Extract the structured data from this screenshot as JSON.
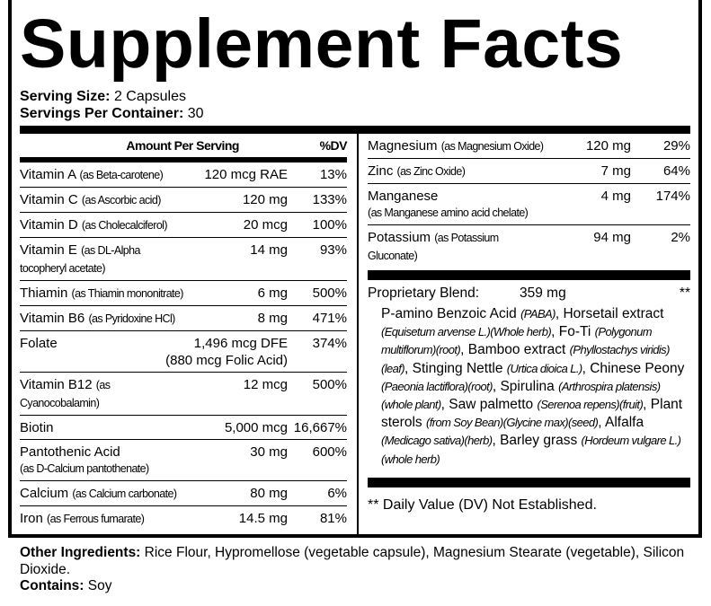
{
  "title": "Supplement Facts",
  "serving": {
    "size_label": "Serving Size:",
    "size_value": "2 Capsules",
    "per_container_label": "Servings Per Container:",
    "per_container_value": "30"
  },
  "header": {
    "amount": "Amount Per Serving",
    "dv": "%DV"
  },
  "left_rows": [
    {
      "name": "Vitamin A",
      "source": "(as Beta-carotene)",
      "amount": "120 mcg RAE",
      "dv": "13%"
    },
    {
      "name": "Vitamin C",
      "source": "(as Ascorbic acid)",
      "amount": "120 mg",
      "dv": "133%"
    },
    {
      "name": "Vitamin D",
      "source": "(as Cholecalciferol)",
      "amount": "20 mcg",
      "dv": "100%"
    },
    {
      "name": "Vitamin E",
      "source": "(as DL-Alpha tocopheryl acetate)",
      "amount": "14 mg",
      "dv": "93%"
    },
    {
      "name": "Thiamin",
      "source": "(as Thiamin mononitrate)",
      "amount": "6 mg",
      "dv": "500%"
    },
    {
      "name": "Vitamin B6",
      "source": "(as Pyridoxine HCl)",
      "amount": "8 mg",
      "dv": "471%"
    },
    {
      "name": "Folate",
      "source": "",
      "amount": "1,496 mcg DFE",
      "amount2": "(880 mcg Folic Acid)",
      "dv": "374%"
    },
    {
      "name": "Vitamin B12",
      "source": "(as Cyanocobalamin)",
      "amount": "12 mcg",
      "dv": "500%"
    },
    {
      "name": "Biotin",
      "source": "",
      "amount": "5,000 mcg",
      "dv": "16,667%"
    },
    {
      "name": "Pantothenic Acid",
      "source2": "(as  D-Calcium pantothenate)",
      "amount": "30 mg",
      "dv": "600%"
    },
    {
      "name": "Calcium",
      "source": "(as Calcium carbonate)",
      "amount": "80 mg",
      "dv": "6%"
    },
    {
      "name": "Iron",
      "source": "(as Ferrous fumarate)",
      "amount": "14.5 mg",
      "dv": "81%"
    }
  ],
  "right_rows": [
    {
      "name": "Magnesium",
      "source": "(as Magnesium Oxide)",
      "amount": "120 mg",
      "dv": "29%"
    },
    {
      "name": "Zinc",
      "source": "(as Zinc Oxide)",
      "amount": "7 mg",
      "dv": "64%"
    },
    {
      "name": "Manganese",
      "source2": "(as Manganese amino acid chelate)",
      "amount": "4 mg",
      "dv": "174%"
    },
    {
      "name": "Potassium",
      "source": "(as Potassium Gluconate)",
      "amount": "94 mg",
      "dv": "2%"
    }
  ],
  "blend": {
    "label": "Proprietary Blend:",
    "amount": "359 mg",
    "dv": "**",
    "ingredients": [
      [
        "P-amino Benzoic Acid ",
        "(PABA)",
        ", Horsetail extract "
      ],
      [
        "",
        "(Equisetum arvense L.)(Whole herb)",
        ", Fo-Ti "
      ],
      [
        "",
        "(Polygonum multiflorum)(root)",
        ", Bamboo extract "
      ],
      [
        "",
        "(Phyllostachys viridis)(leaf)",
        ", Stinging Nettle  "
      ],
      [
        "",
        "(Urtica dioica L.)",
        ", Chinese Peony "
      ],
      [
        "",
        "(Paeonia lactiflora)(root)",
        ", Spirulina "
      ],
      [
        "",
        "(Arthrospira platensis)(whole plant)",
        ", Saw palmetto "
      ],
      [
        "",
        "(Serenoa repens)(fruit)",
        ", Plant sterols "
      ],
      [
        "",
        "(from Soy Bean)(Glycine max)(seed)",
        ", Alfalfa "
      ],
      [
        "",
        "(Medicago sativa)(herb)",
        ", Barley grass "
      ],
      [
        "",
        "(Hordeum vulgare L.)(whole herb)",
        ""
      ]
    ]
  },
  "footnote": "** Daily Value (DV) Not Established.",
  "other": {
    "label": "Other Ingredients:",
    "value": "Rice Flour, Hypromellose (vegetable capsule), Magnesium Stearate (vegetable), Silicon Dioxide.",
    "contains_label": "Contains:",
    "contains_value": "Soy"
  }
}
